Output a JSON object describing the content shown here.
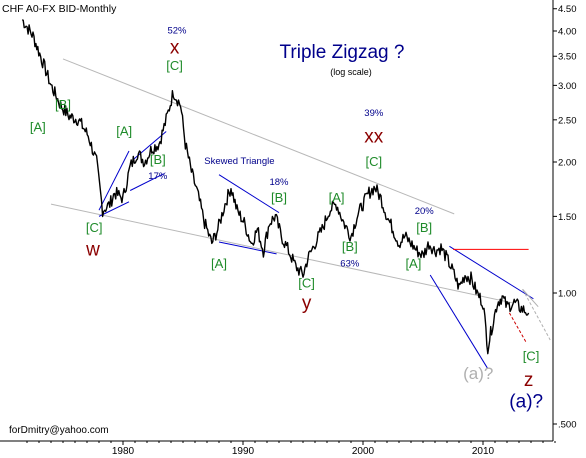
{
  "header": "CHF A0-FX BID-Monthly",
  "credit": "forDmitry@yahoo.com",
  "colors": {
    "price": "#000000",
    "wave_green": "#1f8b2a",
    "wave_red": "#8b0000",
    "wave_navy": "#00008b",
    "wave_grey": "#b0b0b0",
    "channel": "#b8b8b8",
    "triangle": "#0000cc",
    "resistance": "#ff0000",
    "projection_red": "#cc0000",
    "projection_grey": "#b0b0b0"
  },
  "chart_data": {
    "type": "line",
    "title": "Triple Zigzag ?",
    "subtitle": "(log scale)",
    "y_scale": "log",
    "ylim": [
      0.48,
      4.5
    ],
    "xlim": [
      1971.5,
      2016.5
    ],
    "xticks": [
      1980,
      1990,
      2000,
      2010
    ],
    "xtick_labels": [
      "1980",
      "1990",
      "2000",
      "2010"
    ],
    "yticks": [
      0.5,
      1.0,
      1.5,
      2.0,
      2.5,
      3.0,
      3.5,
      4.0,
      4.5
    ],
    "ytick_labels": [
      ".500",
      "1.00",
      "1.50",
      "2.00",
      "2.50",
      "3.00",
      "3.50",
      "4.00",
      "4.50"
    ],
    "series": [
      {
        "x": [
          1971.6,
          1972.5,
          1973.3,
          1974.0,
          1974.8,
          1975.5,
          1976.3,
          1977.1,
          1977.8,
          1978.3,
          1978.9,
          1979.3,
          1980.0,
          1980.6,
          1981.2,
          1981.8,
          1982.4,
          1983.0,
          1983.6,
          1984.2,
          1984.8,
          1985.2,
          1985.7,
          1986.2,
          1986.8,
          1987.4,
          1987.9,
          1988.5,
          1989.0,
          1989.5,
          1990.1,
          1990.7,
          1991.2,
          1991.7,
          1992.2,
          1992.7,
          1993.2,
          1993.8,
          1994.4,
          1995.0,
          1995.4,
          1996.0,
          1996.6,
          1997.2,
          1997.8,
          1998.4,
          1999.0,
          1999.5,
          2000.0,
          2000.5,
          2001.0,
          2001.5,
          2002.0,
          2002.5,
          2003.0,
          2003.5,
          2004.0,
          2004.5,
          2005.0,
          2005.5,
          2006.0,
          2006.5,
          2007.0,
          2007.5,
          2008.0,
          2008.5,
          2009.0,
          2009.5,
          2010.0,
          2010.4,
          2010.8,
          2011.2,
          2011.6,
          2012.0,
          2012.6,
          2013.2,
          2013.8
        ],
        "y": [
          4.25,
          3.9,
          3.4,
          3.0,
          2.7,
          2.55,
          2.5,
          2.3,
          2.0,
          1.55,
          1.6,
          1.7,
          1.65,
          1.95,
          2.1,
          2.0,
          2.15,
          2.2,
          2.5,
          2.9,
          2.7,
          2.2,
          1.9,
          1.7,
          1.45,
          1.3,
          1.4,
          1.6,
          1.75,
          1.55,
          1.45,
          1.3,
          1.4,
          1.25,
          1.45,
          1.5,
          1.35,
          1.25,
          1.15,
          1.1,
          1.2,
          1.3,
          1.4,
          1.55,
          1.6,
          1.45,
          1.35,
          1.5,
          1.6,
          1.7,
          1.75,
          1.65,
          1.5,
          1.4,
          1.3,
          1.35,
          1.3,
          1.25,
          1.22,
          1.3,
          1.25,
          1.27,
          1.2,
          1.12,
          1.03,
          1.1,
          1.08,
          1.0,
          0.95,
          0.75,
          0.85,
          0.95,
          0.98,
          0.93,
          0.95,
          0.92,
          0.9
        ]
      }
    ],
    "annotations": [
      {
        "text": "[A]",
        "x": 1972.9,
        "y": 2.35,
        "color": "green"
      },
      {
        "text": "[B]",
        "x": 1975.0,
        "y": 2.65,
        "color": "green"
      },
      {
        "text": "[C]",
        "x": 1977.6,
        "y": 1.38,
        "color": "green"
      },
      {
        "text": "w",
        "x": 1977.5,
        "y": 1.22,
        "color": "red"
      },
      {
        "text": "[A]",
        "x": 1980.1,
        "y": 2.3,
        "color": "green"
      },
      {
        "text": "[B]",
        "x": 1982.9,
        "y": 1.98,
        "color": "green"
      },
      {
        "text": "17%",
        "x": 1982.9,
        "y": 1.83,
        "color": "navy"
      },
      {
        "text": "[C]",
        "x": 1984.3,
        "y": 3.25,
        "color": "green"
      },
      {
        "text": "x",
        "x": 1984.3,
        "y": 3.55,
        "color": "red"
      },
      {
        "text": "52%",
        "x": 1984.5,
        "y": 3.95,
        "color": "navy"
      },
      {
        "text": "[A]",
        "x": 1988.0,
        "y": 1.14,
        "color": "green"
      },
      {
        "text": "Skewed Triangle",
        "x": 1989.7,
        "y": 1.98,
        "color": "navy"
      },
      {
        "text": "18%",
        "x": 1993.0,
        "y": 1.77,
        "color": "navy"
      },
      {
        "text": "[B]",
        "x": 1993.0,
        "y": 1.62,
        "color": "green"
      },
      {
        "text": "[C]",
        "x": 1995.3,
        "y": 1.03,
        "color": "green"
      },
      {
        "text": "y",
        "x": 1995.3,
        "y": 0.92,
        "color": "red"
      },
      {
        "text": "[A]",
        "x": 1997.8,
        "y": 1.62,
        "color": "green"
      },
      {
        "text": "[B]",
        "x": 1998.9,
        "y": 1.25,
        "color": "green"
      },
      {
        "text": "63%",
        "x": 1998.9,
        "y": 1.15,
        "color": "navy"
      },
      {
        "text": "39%",
        "x": 2000.9,
        "y": 2.55,
        "color": "navy"
      },
      {
        "text": "xx",
        "x": 2000.9,
        "y": 2.22,
        "color": "red"
      },
      {
        "text": "[C]",
        "x": 2000.9,
        "y": 1.96,
        "color": "green"
      },
      {
        "text": "20%",
        "x": 2005.1,
        "y": 1.52,
        "color": "navy"
      },
      {
        "text": "[B]",
        "x": 2005.1,
        "y": 1.38,
        "color": "green"
      },
      {
        "text": "[A]",
        "x": 2004.2,
        "y": 1.14,
        "color": "green"
      },
      {
        "text": "[C]",
        "x": 2014.0,
        "y": 0.7,
        "color": "green"
      },
      {
        "text": "(a)?",
        "x": 2009.6,
        "y": 0.635,
        "color": "grey"
      },
      {
        "text": "z",
        "x": 2013.8,
        "y": 0.612,
        "color": "red"
      },
      {
        "text": "(a)?",
        "x": 2013.6,
        "y": 0.545,
        "color": "navy"
      }
    ],
    "grid": false,
    "legend": "none"
  }
}
